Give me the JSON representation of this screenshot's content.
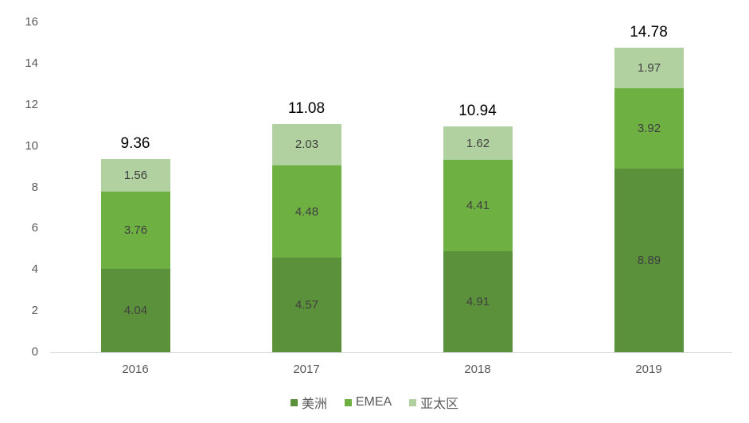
{
  "chart_data": {
    "type": "bar",
    "stacked": true,
    "title": "",
    "xlabel": "",
    "ylabel": "",
    "ylim": [
      0,
      16
    ],
    "yticks": [
      0,
      2,
      4,
      6,
      8,
      10,
      12,
      14,
      16
    ],
    "categories": [
      "2016",
      "2017",
      "2018",
      "2019"
    ],
    "series": [
      {
        "name": "美洲",
        "color": "#5b913a",
        "values": [
          4.04,
          4.57,
          4.91,
          8.89
        ]
      },
      {
        "name": "EMEA",
        "color": "#6fb043",
        "values": [
          3.76,
          4.48,
          4.41,
          3.92
        ]
      },
      {
        "name": "亚太区",
        "color": "#b2d1a0",
        "values": [
          1.56,
          2.03,
          1.62,
          1.97
        ]
      }
    ],
    "totals": [
      9.36,
      11.08,
      10.94,
      14.78
    ],
    "legend_position": "bottom",
    "grid": false
  }
}
